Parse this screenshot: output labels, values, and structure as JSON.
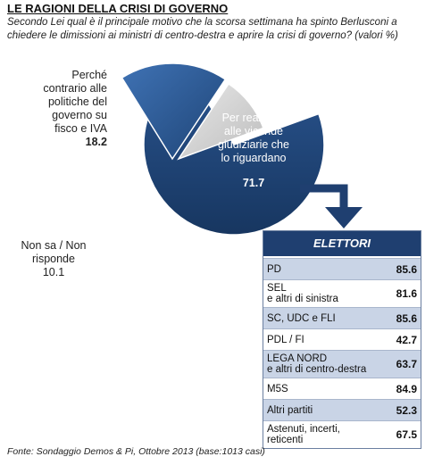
{
  "header": {
    "title": "LE RAGIONI DELLA CRISI DI GOVERNO",
    "subtitle": "Secondo Lei qual è il principale motivo che la scorsa settimana ha spinto Berlusconi a chiedere le dimissioni ai ministri di centro-destra e aprire la crisi di governo?  (valori %)"
  },
  "chart_data": [
    {
      "type": "pie",
      "slices": [
        {
          "label": "Per reazione alle vicende giudiziarie che lo riguardano",
          "value": 71.7,
          "color": "#1f4478",
          "display": "71.7"
        },
        {
          "label": "Perché contrario alle politiche del governo su fisco e IVA",
          "value": 18.2,
          "color": "#2e5c9a",
          "display": "18.2"
        },
        {
          "label": "Non sa / Non risponde",
          "value": 10.1,
          "color": "#d4d4d4",
          "display": "10.1"
        }
      ]
    },
    {
      "type": "table",
      "title": "ELETTORI",
      "rows": [
        {
          "label": "PD",
          "value": "85.6"
        },
        {
          "label": "SEL e altri di sinistra",
          "value": "81.6"
        },
        {
          "label": "SC, UDC e FLI",
          "value": "85.6"
        },
        {
          "label": "PDL / FI",
          "value": "42.7"
        },
        {
          "label": "LEGA NORD e altri di centro-destra",
          "value": "63.7"
        },
        {
          "label": "M5S",
          "value": "84.9"
        },
        {
          "label": "Altri partiti",
          "value": "52.3"
        },
        {
          "label": "Astenuti, incerti, reticenti",
          "value": "67.5"
        }
      ]
    }
  ],
  "labels": {
    "main_l1": "Per reazione",
    "main_l2": "alle vicende",
    "main_l3": "giudiziarie  che",
    "main_l4": "lo riguardano",
    "fisco_l1": "Perché",
    "fisco_l2": "contrario  alle",
    "fisco_l3": "politiche del",
    "fisco_l4": "governo  su",
    "fisco_l5": "fisco e IVA",
    "nonsa_l1": "Non sa / Non",
    "nonsa_l2": "risponde",
    "sel_l1": "SEL",
    "sel_l2": "e altri di sinistra",
    "lega_l1": "LEGA NORD",
    "lega_l2": "e altri di centro-destra",
    "ast_l1": "Astenuti, incerti,",
    "ast_l2": "reticenti"
  },
  "source": "Fonte: Sondaggio Demos & Pi, Ottobre 2013 (base:1013 casi)"
}
